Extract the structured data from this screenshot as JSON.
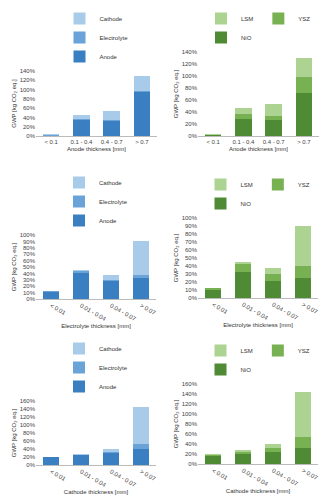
{
  "chart_data": [
    {
      "type": "bar",
      "stacked": true,
      "grid": false,
      "legend": "top",
      "x_label": "Anode thickness [mm]",
      "y_label": "GWP [kg CO₂ eq.]",
      "categories": [
        "< 0.1",
        "0.1 - 0.4",
        "0.4 - 0.7",
        "> 0.7"
      ],
      "series": [
        {
          "name": "Anode",
          "color": "#3a7fc1",
          "values": [
            1,
            35,
            33,
            95
          ]
        },
        {
          "name": "Electrolyte",
          "color": "#6aa3d8",
          "values": [
            0.5,
            1,
            1,
            3
          ]
        },
        {
          "name": "Cathode",
          "color": "#a9cbea",
          "values": [
            2.5,
            10,
            19,
            32
          ]
        }
      ],
      "ylim": [
        0,
        140
      ],
      "yticks": [
        {
          "value": 0,
          "label": "0%"
        },
        {
          "value": 20,
          "label": "20%"
        },
        {
          "value": 40,
          "label": "40%"
        },
        {
          "value": 60,
          "label": "60%"
        },
        {
          "value": 80,
          "label": "80%"
        },
        {
          "value": 100,
          "label": "100%"
        },
        {
          "value": 120,
          "label": "120%"
        },
        {
          "value": 140,
          "label": "140%"
        }
      ]
    },
    {
      "type": "bar",
      "stacked": true,
      "grid": false,
      "legend": "top",
      "x_label": "Anode thickness [mm]",
      "y_label": "GWP [kg CO₂ eq.]",
      "categories": [
        "< 0.1",
        "0.1 - 0.4",
        "0.4 - 0.7",
        "> 0.7"
      ],
      "series": [
        {
          "name": "NiO",
          "color": "#4f8a34",
          "values": [
            1,
            28,
            26,
            72
          ]
        },
        {
          "name": "YSZ",
          "color": "#78b152",
          "values": [
            1.5,
            8,
            8,
            26
          ]
        },
        {
          "name": "LSM",
          "color": "#acd392",
          "values": [
            1.5,
            10,
            19,
            32
          ]
        }
      ],
      "ylim": [
        0,
        140
      ],
      "yticks": [
        {
          "value": 0,
          "label": "0%"
        },
        {
          "value": 20,
          "label": "20%"
        },
        {
          "value": 40,
          "label": "40%"
        },
        {
          "value": 60,
          "label": "60%"
        },
        {
          "value": 80,
          "label": "80%"
        },
        {
          "value": 100,
          "label": "100%"
        },
        {
          "value": 120,
          "label": "120%"
        },
        {
          "value": 140,
          "label": "140%"
        }
      ]
    },
    {
      "type": "bar",
      "stacked": true,
      "grid": false,
      "legend": "top",
      "x_label": "Electrolyte thickness [mm]",
      "y_label": "GWP [kg CO₂ eq.]",
      "categories": [
        "< 0.01",
        "0.01 - 0.04",
        "0.04 - 0.07",
        "> 0.07"
      ],
      "series": [
        {
          "name": "Anode",
          "color": "#3a7fc1",
          "values": [
            11,
            41,
            28,
            33
          ]
        },
        {
          "name": "Electrolyte",
          "color": "#6aa3d8",
          "values": [
            1,
            2,
            2,
            5
          ]
        },
        {
          "name": "Cathode",
          "color": "#a9cbea",
          "values": [
            1,
            2,
            7,
            52
          ]
        }
      ],
      "ylim": [
        0,
        100
      ],
      "yticks": [
        {
          "value": 0,
          "label": "0%"
        },
        {
          "value": 10,
          "label": "10%"
        },
        {
          "value": 20,
          "label": "20%"
        },
        {
          "value": 30,
          "label": "30%"
        },
        {
          "value": 40,
          "label": "40%"
        },
        {
          "value": 50,
          "label": "50%"
        },
        {
          "value": 60,
          "label": "60%"
        },
        {
          "value": 70,
          "label": "70%"
        },
        {
          "value": 80,
          "label": "80%"
        },
        {
          "value": 90,
          "label": "90%"
        },
        {
          "value": 100,
          "label": "100%"
        }
      ]
    },
    {
      "type": "bar",
      "stacked": true,
      "grid": false,
      "legend": "top",
      "x_label": "Electrolyte thickness [mm]",
      "y_label": "GWP [kg CO₂ eq.]",
      "categories": [
        "< 0.01",
        "0.01 - 0.04",
        "0.04 - 0.07",
        "> 0.07"
      ],
      "series": [
        {
          "name": "NiO",
          "color": "#4f8a34",
          "values": [
            10,
            33,
            21,
            25
          ]
        },
        {
          "name": "YSZ",
          "color": "#78b152",
          "values": [
            2,
            10,
            9,
            15
          ]
        },
        {
          "name": "LSM",
          "color": "#acd392",
          "values": [
            1,
            2,
            7,
            50
          ]
        }
      ],
      "ylim": [
        0,
        100
      ],
      "yticks": [
        {
          "value": 0,
          "label": "0%"
        },
        {
          "value": 10,
          "label": "10%"
        },
        {
          "value": 20,
          "label": "20%"
        },
        {
          "value": 30,
          "label": "30%"
        },
        {
          "value": 40,
          "label": "40%"
        },
        {
          "value": 50,
          "label": "50%"
        },
        {
          "value": 60,
          "label": "60%"
        },
        {
          "value": 70,
          "label": "70%"
        },
        {
          "value": 80,
          "label": "80%"
        },
        {
          "value": 90,
          "label": "90%"
        },
        {
          "value": 100,
          "label": "100%"
        }
      ]
    },
    {
      "type": "bar",
      "stacked": true,
      "grid": false,
      "legend": "top",
      "x_label": "Cathode thickness [mm]",
      "y_label": "GWP [kg CO₂ eq.]",
      "categories": [
        "< 0.01",
        "0.01 - 0.04",
        "0.04 - 0.07",
        "> 0.07"
      ],
      "series": [
        {
          "name": "Anode",
          "color": "#3a7fc1",
          "values": [
            19,
            24,
            30,
            40
          ]
        },
        {
          "name": "Electrolyte",
          "color": "#6aa3d8",
          "values": [
            0.5,
            1,
            2,
            12
          ]
        },
        {
          "name": "Cathode",
          "color": "#a9cbea",
          "values": [
            0.5,
            3,
            8,
            93
          ]
        }
      ],
      "ylim": [
        0,
        160
      ],
      "yticks": [
        {
          "value": 0,
          "label": "0%"
        },
        {
          "value": 20,
          "label": "20%"
        },
        {
          "value": 40,
          "label": "40%"
        },
        {
          "value": 60,
          "label": "60%"
        },
        {
          "value": 80,
          "label": "80%"
        },
        {
          "value": 100,
          "label": "100%"
        },
        {
          "value": 120,
          "label": "120%"
        },
        {
          "value": 140,
          "label": "140%"
        },
        {
          "value": 160,
          "label": "160%"
        }
      ]
    },
    {
      "type": "bar",
      "stacked": true,
      "grid": false,
      "legend": "top",
      "x_label": "Cathode thickness [mm]",
      "y_label": "GWP [kg CO₂ eq.]",
      "categories": [
        "< 0.01",
        "0.01 - 0.04",
        "0.04 - 0.07",
        "> 0.07"
      ],
      "series": [
        {
          "name": "NiO",
          "color": "#4f8a34",
          "values": [
            16,
            20,
            24,
            33
          ]
        },
        {
          "name": "YSZ",
          "color": "#78b152",
          "values": [
            3,
            5,
            8,
            22
          ]
        },
        {
          "name": "LSM",
          "color": "#acd392",
          "values": [
            1,
            3,
            8,
            90
          ]
        }
      ],
      "ylim": [
        0,
        160
      ],
      "yticks": [
        {
          "value": 0,
          "label": "0%"
        },
        {
          "value": 20,
          "label": "20%"
        },
        {
          "value": 40,
          "label": "40%"
        },
        {
          "value": 60,
          "label": "60%"
        },
        {
          "value": 80,
          "label": "80%"
        },
        {
          "value": 100,
          "label": "100%"
        },
        {
          "value": 120,
          "label": "120%"
        },
        {
          "value": 140,
          "label": "140%"
        },
        {
          "value": 160,
          "label": "160%"
        }
      ]
    }
  ]
}
